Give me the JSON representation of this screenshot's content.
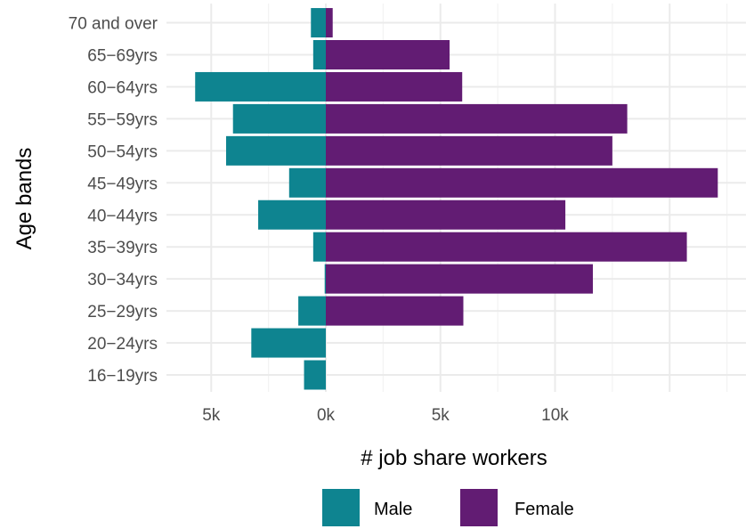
{
  "chart_data": {
    "type": "bar",
    "orientation": "horizontal",
    "layout": "population-pyramid",
    "categories": [
      "16−19yrs",
      "20−24yrs",
      "25−29yrs",
      "30−34yrs",
      "35−39yrs",
      "40−44yrs",
      "45−49yrs",
      "50−54yrs",
      "55−59yrs",
      "60−64yrs",
      "65−69yrs",
      "70 and over"
    ],
    "series": [
      {
        "name": "Male",
        "color": "#0e8490",
        "values": [
          -950,
          -3250,
          -1200,
          -50,
          -550,
          -2950,
          -1600,
          -4350,
          -4050,
          -5700,
          -550,
          -650
        ]
      },
      {
        "name": "Female",
        "color": "#621c73",
        "values": [
          0,
          0,
          6000,
          11650,
          15750,
          10450,
          17100,
          12500,
          13150,
          5950,
          5400,
          300
        ]
      }
    ],
    "xlim": [
      -7000,
      18500
    ],
    "x_ticks": [
      -5000,
      0,
      5000,
      10000
    ],
    "x_tick_labels": [
      "5k",
      "0k",
      "5k",
      "10k"
    ],
    "xlabel": "# job share workers",
    "ylabel": "Age bands",
    "grid": true,
    "legend": {
      "position": "bottom",
      "entries": [
        "Male",
        "Female"
      ]
    }
  }
}
